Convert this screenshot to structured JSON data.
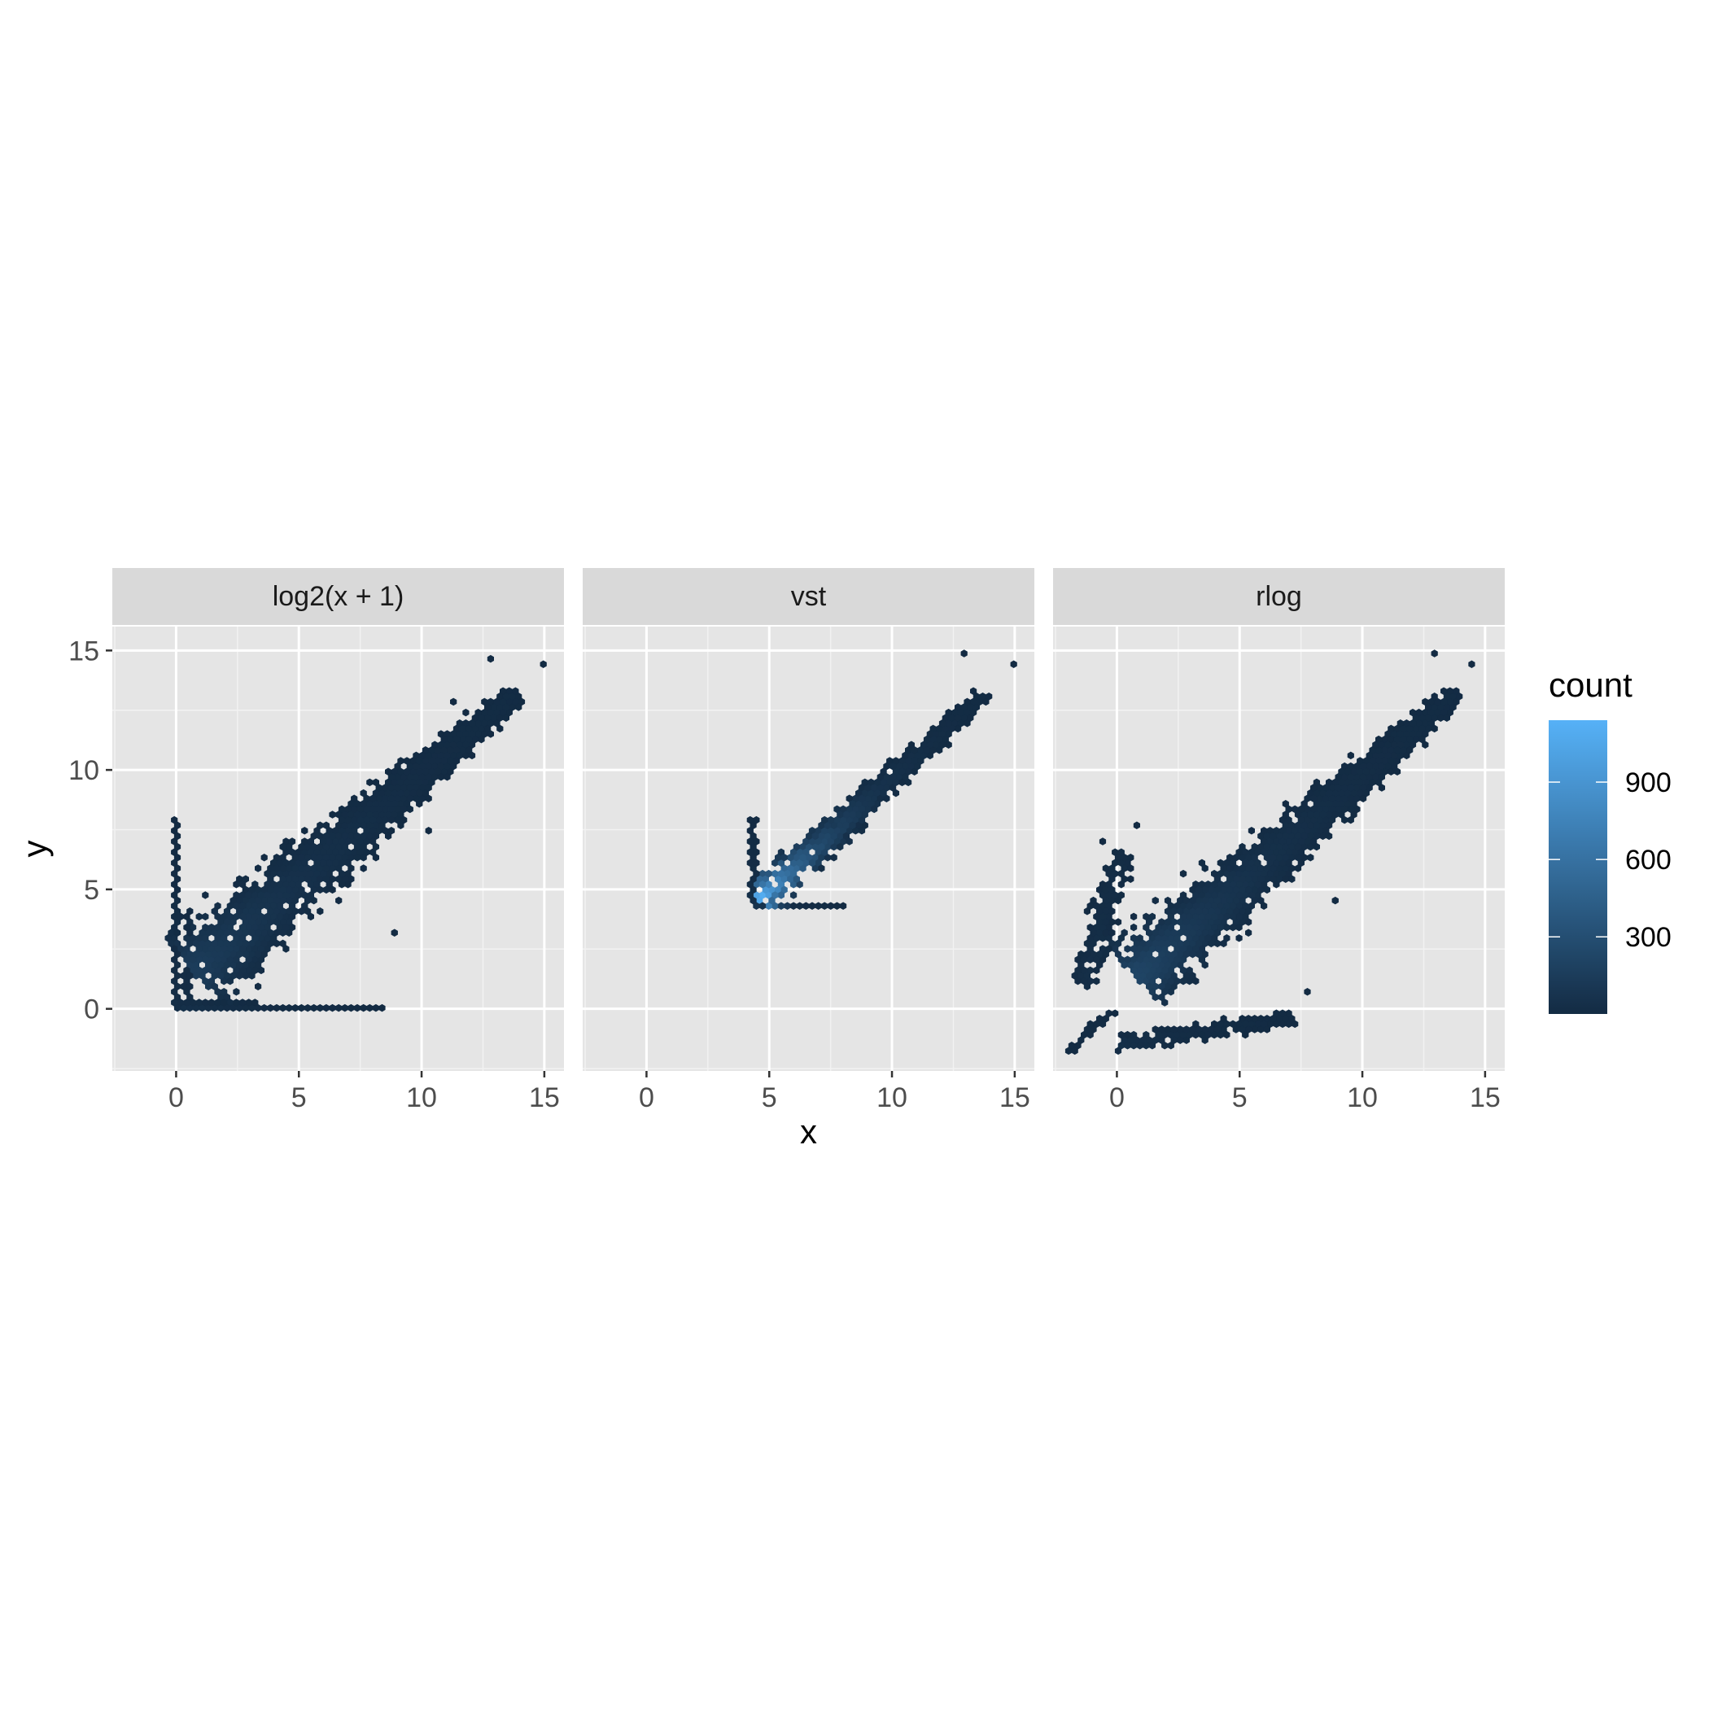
{
  "chart_data": {
    "type": "hexbin",
    "facet_order": [
      "log2(x + 1)",
      "vst",
      "rlog"
    ],
    "xlabel": "x",
    "ylabel": "y",
    "xlim": [
      -2.6,
      15.8
    ],
    "ylim": [
      -2.6,
      16.0
    ],
    "x_ticks": [
      0,
      5,
      10,
      15
    ],
    "y_ticks": [
      0,
      5,
      10,
      15
    ],
    "grid": true,
    "panel_background": "#e5e5e5",
    "strip_background": "#d9d9d9",
    "legend": {
      "title": "count",
      "placement": "right",
      "range": [
        1,
        1140
      ],
      "ticks": [
        300,
        600,
        900
      ],
      "low_color": "#132b43",
      "high_color": "#56b1f7"
    },
    "panels": [
      {
        "name": "log2(x + 1)",
        "clusters": [
          {
            "shape": "diagonal",
            "x_start": 0.8,
            "x_end": 13.8,
            "y_start": 1.6,
            "y_end": 13.2,
            "width": 2.6,
            "width_end": 0.5,
            "count_start": 150,
            "count_end": 5
          },
          {
            "shape": "horizontal",
            "x_start": 0.3,
            "x_end": 8.4,
            "y": 0.0,
            "thickness": 0.1,
            "count_start": 40,
            "count_end": 2
          },
          {
            "shape": "horizontal",
            "x_start": 0.3,
            "x_end": 3.3,
            "y": 0.35,
            "thickness": 0.05,
            "count_start": 20,
            "count_end": 3
          },
          {
            "shape": "vertical",
            "x": 0.0,
            "y_start": 0.0,
            "y_end": 7.9,
            "thickness": 0.05,
            "count_start": 25,
            "count_end": 2
          },
          {
            "shape": "vertical",
            "x": 0.45,
            "y_start": 0.0,
            "y_end": 4.0,
            "thickness": 0.05,
            "count_start": 20,
            "count_end": 3
          }
        ],
        "outliers": [
          [
            12.8,
            14.7
          ],
          [
            14.9,
            14.5
          ],
          [
            10.2,
            7.4
          ],
          [
            9.0,
            3.1
          ],
          [
            8.4,
            0.0
          ],
          [
            11.2,
            12.8
          ]
        ]
      },
      {
        "name": "vst",
        "clusters": [
          {
            "shape": "diagonal",
            "x_start": 4.6,
            "x_end": 13.8,
            "y_start": 4.6,
            "y_end": 13.2,
            "width": 1.2,
            "width_end": 0.4,
            "count_start": 1140,
            "count_end": 5
          },
          {
            "shape": "horizontal",
            "x_start": 4.4,
            "x_end": 8.0,
            "y": 4.3,
            "thickness": 0.1,
            "count_start": 70,
            "count_end": 3
          },
          {
            "shape": "vertical",
            "x": 4.35,
            "y_start": 4.3,
            "y_end": 8.0,
            "thickness": 0.05,
            "count_start": 40,
            "count_end": 3
          }
        ],
        "outliers": [
          [
            12.9,
            14.8
          ],
          [
            14.9,
            14.5
          ],
          [
            8.0,
            4.4
          ],
          [
            10.4,
            9.5
          ]
        ]
      },
      {
        "name": "rlog",
        "clusters": [
          {
            "shape": "diagonal",
            "x_start": 0.8,
            "x_end": 13.8,
            "y_start": 1.4,
            "y_end": 13.2,
            "width": 2.4,
            "width_end": 0.5,
            "count_start": 220,
            "count_end": 5
          },
          {
            "shape": "diagonal",
            "x_start": -1.3,
            "x_end": 0.2,
            "y_start": 1.0,
            "y_end": 6.6,
            "width": 0.7,
            "width_end": 0.8,
            "count_start": 35,
            "count_end": 15
          },
          {
            "shape": "diagonal",
            "x_start": 0.0,
            "x_end": 7.2,
            "y_start": -1.5,
            "y_end": -0.4,
            "width": 0.6,
            "width_end": 0.4,
            "count_start": 45,
            "count_end": 3
          },
          {
            "shape": "diagonal",
            "x_start": -1.9,
            "x_end": -0.2,
            "y_start": -1.8,
            "y_end": 0.0,
            "width": 0.15,
            "width_end": 0.15,
            "count_start": 10,
            "count_end": 10
          }
        ],
        "outliers": [
          [
            12.9,
            14.8
          ],
          [
            14.5,
            14.4
          ],
          [
            0.9,
            7.6
          ],
          [
            8.9,
            4.5
          ],
          [
            7.8,
            0.7
          ],
          [
            -0.7,
            7.0
          ]
        ]
      }
    ]
  }
}
